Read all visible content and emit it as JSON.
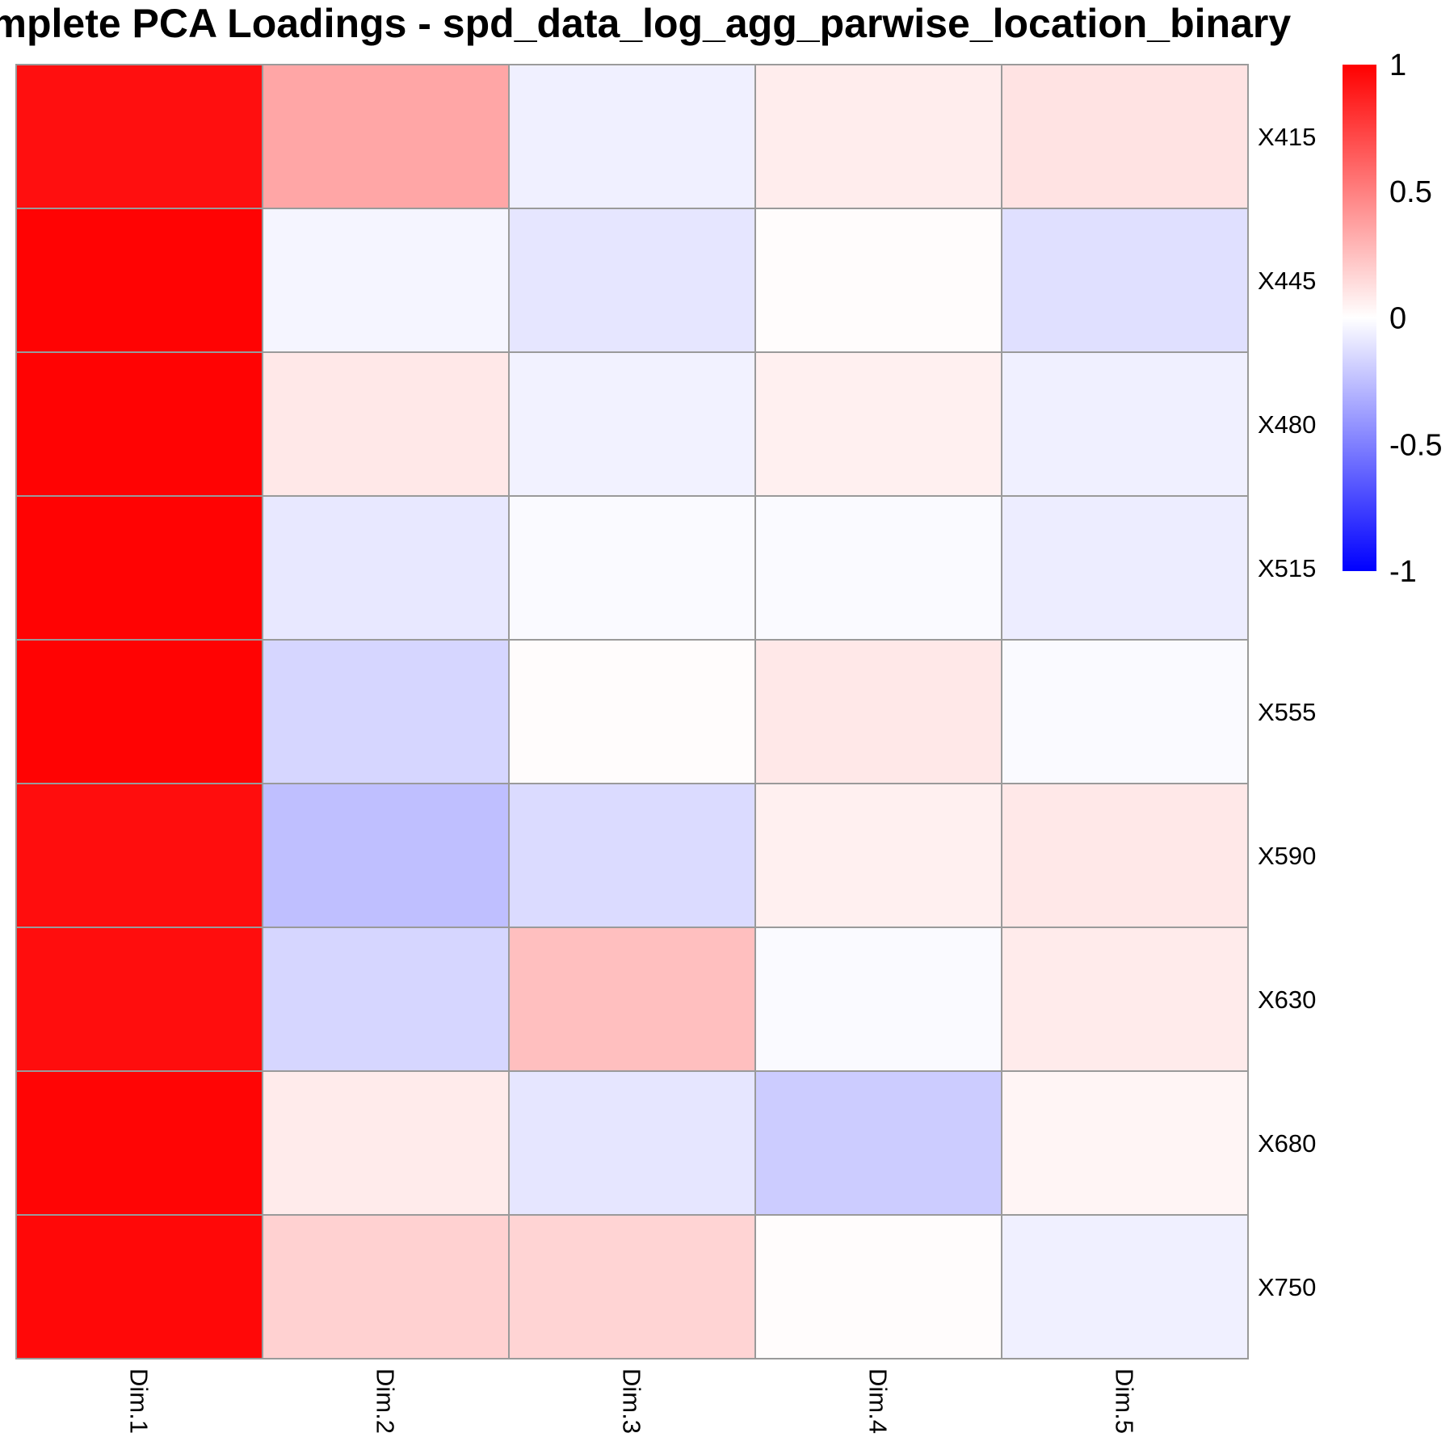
{
  "chart_data": {
    "type": "heatmap",
    "title": "Complete PCA Loadings - spd_data_log_agg_parwise_location_binary",
    "rows": [
      "X415",
      "X445",
      "X480",
      "X515",
      "X555",
      "X590",
      "X630",
      "X680",
      "X750"
    ],
    "columns": [
      "Dim.1",
      "Dim.2",
      "Dim.3",
      "Dim.4",
      "Dim.5"
    ],
    "values": [
      [
        0.94,
        0.35,
        -0.06,
        0.07,
        0.11
      ],
      [
        0.99,
        -0.04,
        -0.1,
        0.01,
        -0.12
      ],
      [
        0.99,
        0.09,
        -0.05,
        0.06,
        -0.06
      ],
      [
        0.99,
        -0.09,
        -0.02,
        -0.02,
        -0.07
      ],
      [
        0.99,
        -0.16,
        0.01,
        0.09,
        -0.02
      ],
      [
        0.95,
        -0.25,
        -0.14,
        0.06,
        0.09
      ],
      [
        0.95,
        -0.16,
        0.25,
        -0.02,
        0.08
      ],
      [
        0.98,
        0.08,
        -0.1,
        -0.2,
        0.04
      ],
      [
        0.97,
        0.18,
        0.17,
        0.01,
        -0.06
      ]
    ],
    "color_scale": {
      "min": -1,
      "mid": 0,
      "max": 1,
      "low_color": "#0000ff",
      "mid_color": "#ffffff",
      "high_color": "#ff0000"
    },
    "legend_ticks": [
      "1",
      "0.5",
      "0",
      "-0.5",
      "-1"
    ],
    "legend_placement": "right",
    "cell_border_color": "#9a9a9a"
  }
}
